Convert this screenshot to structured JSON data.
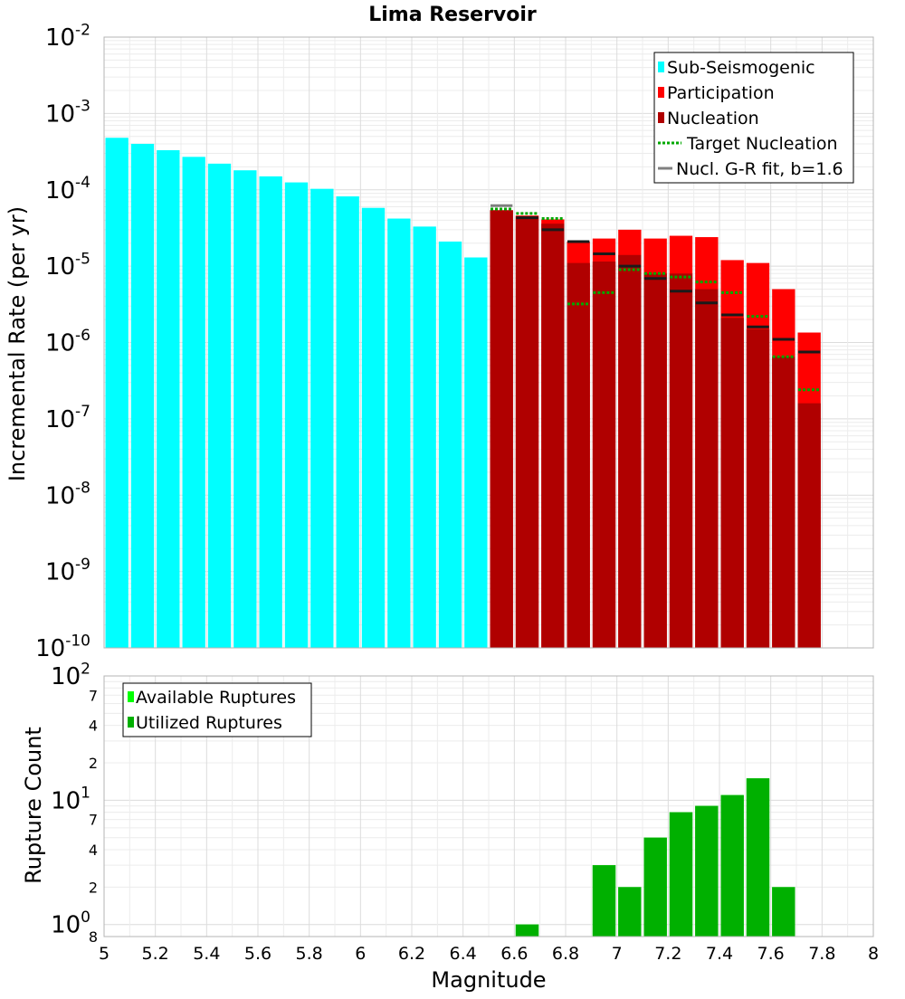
{
  "chart_data": [
    {
      "type": "bar",
      "title": "Lima Reservoir",
      "ylabel": "Incremental Rate (per yr)",
      "xlabel": "",
      "yscale": "log",
      "ylim": [
        1e-10,
        0.01
      ],
      "xlim": [
        5,
        8
      ],
      "y_ticks": [
        {
          "value": 1e-10,
          "base": "10",
          "exp": "-10"
        },
        {
          "value": 1e-09,
          "base": "10",
          "exp": "-9"
        },
        {
          "value": 1e-08,
          "base": "10",
          "exp": "-8"
        },
        {
          "value": 1e-07,
          "base": "10",
          "exp": "-7"
        },
        {
          "value": 1e-06,
          "base": "10",
          "exp": "-6"
        },
        {
          "value": 1e-05,
          "base": "10",
          "exp": "-5"
        },
        {
          "value": 0.0001,
          "base": "10",
          "exp": "-4"
        },
        {
          "value": 0.001,
          "base": "10",
          "exp": "-3"
        },
        {
          "value": 0.01,
          "base": "10",
          "exp": "-2"
        }
      ],
      "legend_position": "top-right",
      "grid": true,
      "bin_width": 0.1,
      "colors": {
        "sub_seismogenic": "#00ffff",
        "participation": "#ff0000",
        "nucleation": "#b00000",
        "target_nucleation": "#00a800",
        "gr_fit": "#808080"
      },
      "series": [
        {
          "name": "Sub-Seismogenic",
          "kind": "bar",
          "x": [
            5.05,
            5.15,
            5.25,
            5.35,
            5.45,
            5.55,
            5.65,
            5.75,
            5.85,
            5.95,
            6.05,
            6.15,
            6.25,
            6.35,
            6.45
          ],
          "values": [
            0.00048,
            0.0004,
            0.00033,
            0.00027,
            0.00022,
            0.00018,
            0.00015,
            0.000125,
            0.000103,
            8.2e-05,
            5.8e-05,
            4.2e-05,
            3.3e-05,
            2.1e-05,
            1.3e-05
          ]
        },
        {
          "name": "Participation",
          "kind": "bar",
          "x": [
            6.55,
            6.65,
            6.75,
            6.85,
            6.95,
            7.05,
            7.15,
            7.25,
            7.35,
            7.45,
            7.55,
            7.65,
            7.75
          ],
          "values": [
            5.4e-05,
            4.6e-05,
            4.1e-05,
            2.1e-05,
            2.3e-05,
            3e-05,
            2.3e-05,
            2.5e-05,
            2.4e-05,
            1.2e-05,
            1.1e-05,
            5e-06,
            1.35e-06
          ]
        },
        {
          "name": "Nucleation",
          "kind": "bar",
          "x": [
            6.55,
            6.65,
            6.75,
            6.85,
            6.95,
            7.05,
            7.15,
            7.25,
            7.35,
            7.45,
            7.55,
            7.65,
            7.75
          ],
          "values": [
            5.4e-05,
            4.5e-05,
            3.6e-05,
            1.1e-05,
            1.15e-05,
            1.4e-05,
            8e-06,
            8e-06,
            5e-06,
            2.1e-06,
            1.5e-06,
            6.5e-07,
            1.6e-07
          ]
        },
        {
          "name": "Target Nucleation",
          "kind": "dotted-step",
          "x": [
            6.55,
            6.65,
            6.75,
            6.85,
            6.95,
            7.05,
            7.15,
            7.25,
            7.35,
            7.45,
            7.55,
            7.65,
            7.75
          ],
          "values": [
            5.6e-05,
            4.9e-05,
            4.2e-05,
            3.2e-06,
            4.5e-06,
            9e-06,
            8e-06,
            7.2e-06,
            6.2e-06,
            4.5e-06,
            2.2e-06,
            6.5e-07,
            2.4e-07
          ]
        },
        {
          "name": "Nucl. G-R fit, b=1.6",
          "kind": "solid-step",
          "x": [
            6.55,
            6.65,
            6.75,
            6.85,
            6.95,
            7.05,
            7.15,
            7.25,
            7.35,
            7.45,
            7.55,
            7.65,
            7.75
          ],
          "values": [
            6.2e-05,
            4.3e-05,
            3e-05,
            2.1e-05,
            1.45e-05,
            1e-05,
            6.9e-06,
            4.7e-06,
            3.3e-06,
            2.3e-06,
            1.6e-06,
            1.1e-06,
            7.5e-07
          ]
        }
      ],
      "gr_marker_color": "#1a1a1a"
    },
    {
      "type": "bar",
      "title": "",
      "ylabel": "Rupture Count",
      "xlabel": "Magnitude",
      "yscale": "log",
      "ylim": [
        0.8,
        100
      ],
      "xlim": [
        5,
        8
      ],
      "x_ticks": [
        "5",
        "5.2",
        "5.4",
        "5.6",
        "5.8",
        "6",
        "6.2",
        "6.4",
        "6.6",
        "6.8",
        "7",
        "7.2",
        "7.4",
        "7.6",
        "7.8",
        "8"
      ],
      "y_major_ticks": [
        {
          "value": 1,
          "base": "10",
          "exp": "0"
        },
        {
          "value": 10,
          "base": "10",
          "exp": "1"
        },
        {
          "value": 100,
          "base": "10",
          "exp": "2"
        }
      ],
      "y_minor_labels": [
        {
          "value": 0.8,
          "label": "8"
        },
        {
          "value": 2,
          "label": "2"
        },
        {
          "value": 4,
          "label": "4"
        },
        {
          "value": 7,
          "label": "7"
        },
        {
          "value": 20,
          "label": "2"
        },
        {
          "value": 40,
          "label": "4"
        },
        {
          "value": 70,
          "label": "7"
        }
      ],
      "legend_position": "top-left",
      "grid": true,
      "colors": {
        "available": "#00ff00",
        "utilized": "#00b000"
      },
      "series": [
        {
          "name": "Available Ruptures",
          "kind": "bar",
          "x": [
            6.65,
            6.95,
            7.05,
            7.15,
            7.25,
            7.35,
            7.45,
            7.55,
            7.65
          ],
          "values": [
            1,
            3,
            2,
            5,
            8,
            9,
            11,
            15,
            2
          ]
        },
        {
          "name": "Utilized Ruptures",
          "kind": "bar",
          "x": [
            6.65,
            6.95,
            7.05,
            7.15,
            7.25,
            7.35,
            7.45,
            7.55,
            7.65
          ],
          "values": [
            1,
            3,
            2,
            5,
            8,
            9,
            11,
            15,
            2
          ]
        }
      ]
    }
  ]
}
